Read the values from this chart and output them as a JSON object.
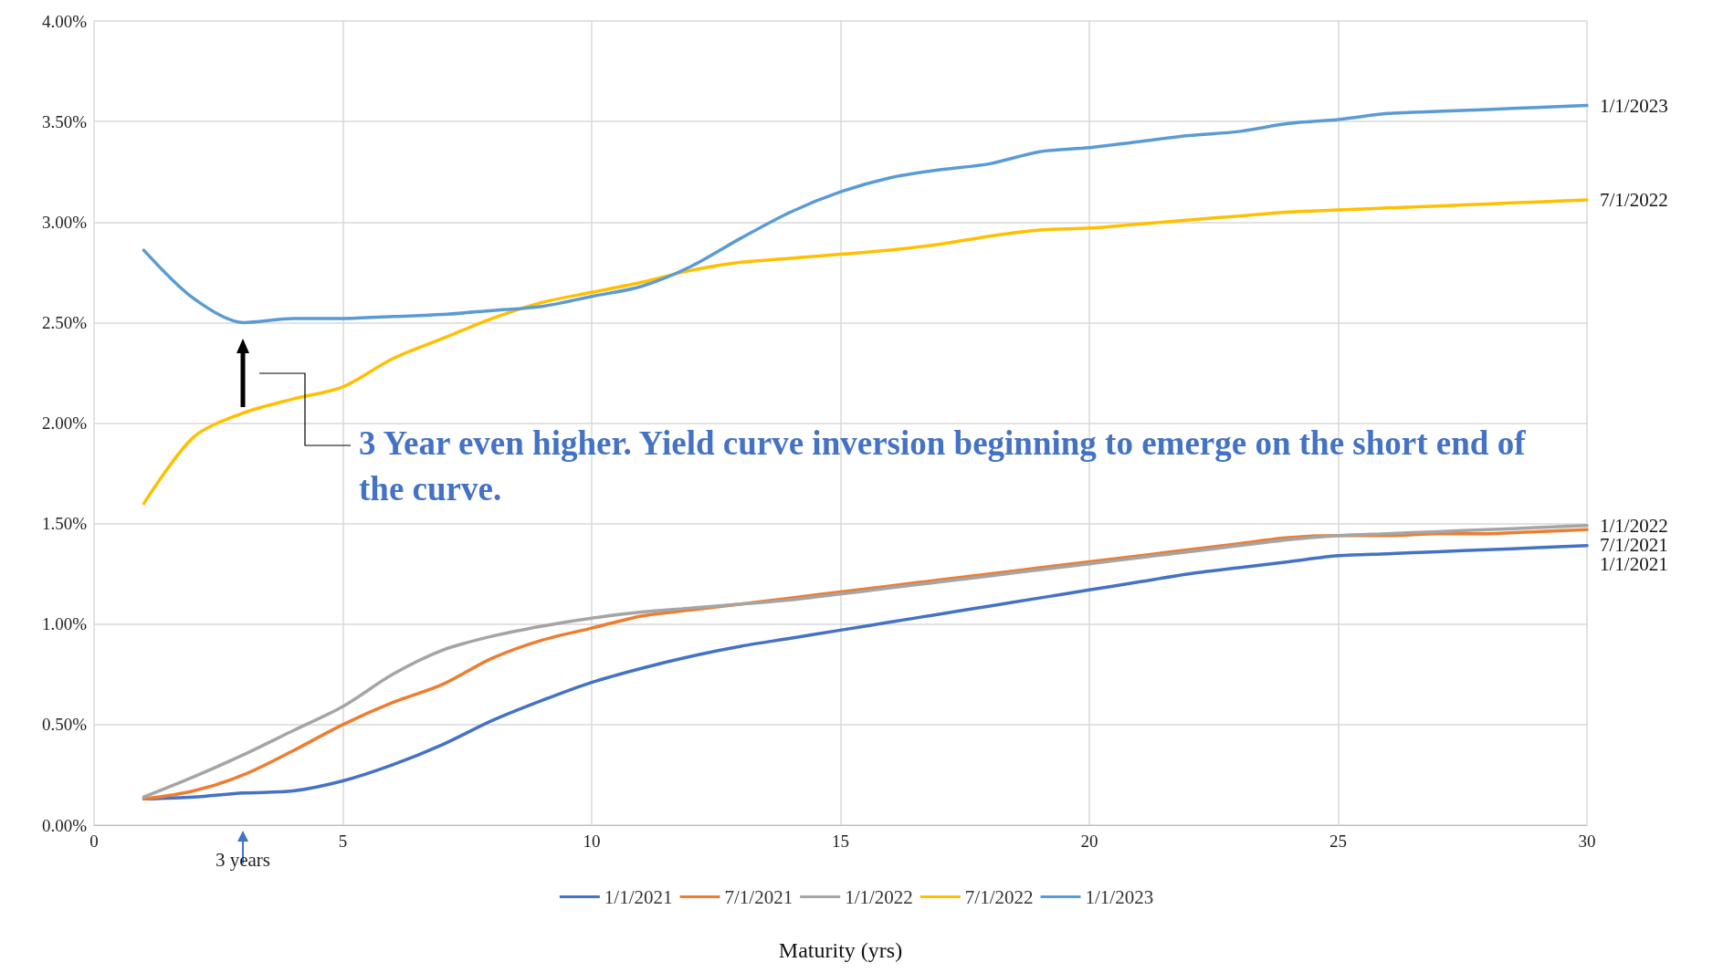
{
  "chart_data": {
    "type": "line",
    "xlabel": "Maturity (yrs)",
    "x": [
      1,
      2,
      3,
      4,
      5,
      6,
      7,
      8,
      9,
      10,
      11,
      12,
      13,
      14,
      15,
      16,
      17,
      18,
      19,
      20,
      21,
      22,
      23,
      24,
      25,
      26,
      27,
      28,
      29,
      30
    ],
    "series": [
      {
        "name": "1/1/2021",
        "color": "#4472c4",
        "values": [
          0.13,
          0.14,
          0.16,
          0.17,
          0.22,
          0.3,
          0.4,
          0.52,
          0.62,
          0.71,
          0.78,
          0.84,
          0.89,
          0.93,
          0.97,
          1.01,
          1.05,
          1.09,
          1.13,
          1.17,
          1.21,
          1.25,
          1.28,
          1.31,
          1.34,
          1.35,
          1.36,
          1.37,
          1.38,
          1.39
        ]
      },
      {
        "name": "7/1/2021",
        "color": "#ed7d31",
        "values": [
          0.13,
          0.17,
          0.25,
          0.37,
          0.5,
          0.61,
          0.7,
          0.83,
          0.92,
          0.98,
          1.04,
          1.07,
          1.1,
          1.13,
          1.16,
          1.19,
          1.22,
          1.25,
          1.28,
          1.31,
          1.34,
          1.37,
          1.4,
          1.43,
          1.44,
          1.44,
          1.45,
          1.45,
          1.46,
          1.47
        ]
      },
      {
        "name": "1/1/2022",
        "color": "#a5a5a5",
        "values": [
          0.14,
          0.24,
          0.35,
          0.47,
          0.59,
          0.75,
          0.87,
          0.94,
          0.99,
          1.03,
          1.06,
          1.08,
          1.1,
          1.12,
          1.15,
          1.18,
          1.21,
          1.24,
          1.27,
          1.3,
          1.33,
          1.36,
          1.39,
          1.42,
          1.44,
          1.45,
          1.46,
          1.47,
          1.48,
          1.49
        ]
      },
      {
        "name": "7/1/2022",
        "color": "#ffc000",
        "values": [
          1.6,
          1.93,
          2.05,
          2.12,
          2.18,
          2.32,
          2.42,
          2.52,
          2.6,
          2.65,
          2.7,
          2.76,
          2.8,
          2.82,
          2.84,
          2.86,
          2.89,
          2.93,
          2.96,
          2.97,
          2.99,
          3.01,
          3.03,
          3.05,
          3.06,
          3.07,
          3.08,
          3.09,
          3.1,
          3.11
        ]
      },
      {
        "name": "1/1/2023",
        "color": "#5b9bd5",
        "values": [
          2.86,
          2.62,
          2.5,
          2.52,
          2.52,
          2.53,
          2.54,
          2.56,
          2.58,
          2.63,
          2.68,
          2.78,
          2.92,
          3.05,
          3.15,
          3.22,
          3.26,
          3.29,
          3.35,
          3.37,
          3.4,
          3.43,
          3.45,
          3.49,
          3.51,
          3.54,
          3.55,
          3.56,
          3.57,
          3.58
        ]
      }
    ],
    "xlim": [
      0,
      30
    ],
    "xticks": [
      0,
      5,
      10,
      15,
      20,
      25,
      30
    ],
    "ylim": [
      0,
      4
    ],
    "yticks": [
      {
        "value": 0,
        "label": "0.00%"
      },
      {
        "value": 0.5,
        "label": "0.50%"
      },
      {
        "value": 1,
        "label": "1.00%"
      },
      {
        "value": 1.5,
        "label": "1.50%"
      },
      {
        "value": 2,
        "label": "2.00%"
      },
      {
        "value": 2.5,
        "label": "2.50%"
      },
      {
        "value": 3,
        "label": "3.00%"
      },
      {
        "value": 3.5,
        "label": "3.50%"
      },
      {
        "value": 4,
        "label": "4.00%"
      }
    ],
    "grid": true,
    "legend": "bottom",
    "marker": "none",
    "line_style": "solid",
    "annotations": [
      "3 Year even higher. Yield curve inversion beginning to emerge on the short end of the curve.",
      "3 years"
    ]
  }
}
